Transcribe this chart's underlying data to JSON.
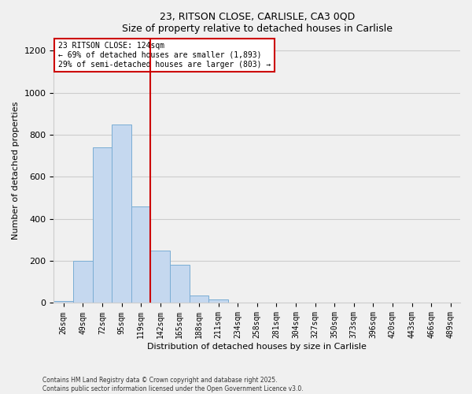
{
  "title": "23, RITSON CLOSE, CARLISLE, CA3 0QD",
  "subtitle": "Size of property relative to detached houses in Carlisle",
  "xlabel": "Distribution of detached houses by size in Carlisle",
  "ylabel": "Number of detached properties",
  "bar_labels": [
    "26sqm",
    "49sqm",
    "72sqm",
    "95sqm",
    "119sqm",
    "142sqm",
    "165sqm",
    "188sqm",
    "211sqm",
    "234sqm",
    "258sqm",
    "281sqm",
    "304sqm",
    "327sqm",
    "350sqm",
    "373sqm",
    "396sqm",
    "420sqm",
    "443sqm",
    "466sqm",
    "489sqm"
  ],
  "bar_heights": [
    10,
    200,
    740,
    850,
    460,
    250,
    180,
    35,
    15,
    0,
    0,
    0,
    0,
    0,
    0,
    0,
    0,
    0,
    0,
    0,
    0
  ],
  "bar_color": "#c5d8ef",
  "bar_edge_color": "#7aadd4",
  "vline_x_pos": 4.5,
  "vline_color": "#cc0000",
  "ylim": [
    0,
    1260
  ],
  "yticks": [
    0,
    200,
    400,
    600,
    800,
    1000,
    1200
  ],
  "annotation_title": "23 RITSON CLOSE: 124sqm",
  "annotation_line1": "← 69% of detached houses are smaller (1,893)",
  "annotation_line2": "29% of semi-detached houses are larger (803) →",
  "annotation_box_color": "#ffffff",
  "annotation_box_edge": "#cc0000",
  "footnote1": "Contains HM Land Registry data © Crown copyright and database right 2025.",
  "footnote2": "Contains public sector information licensed under the Open Government Licence v3.0.",
  "background_color": "#f0f0f0",
  "grid_color": "#cccccc"
}
